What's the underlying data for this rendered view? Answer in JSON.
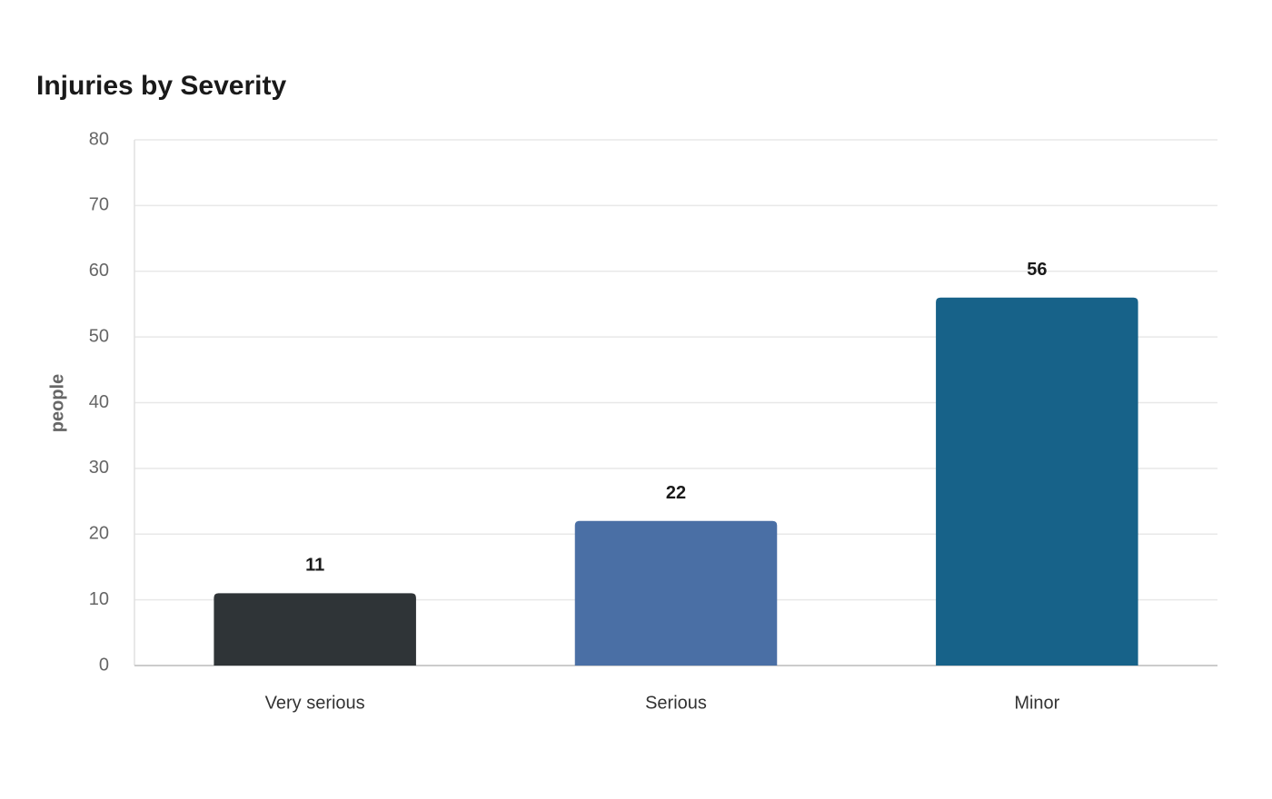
{
  "chart_data": {
    "type": "bar",
    "title": "Injuries by Severity",
    "y_label": "people",
    "categories": [
      "Very serious",
      "Serious",
      "Minor"
    ],
    "values": [
      11,
      22,
      56
    ],
    "colors": [
      "#2f3437",
      "#4a6fa5",
      "#176289"
    ],
    "ylim": [
      0,
      80
    ],
    "yticks": [
      0,
      10,
      20,
      30,
      40,
      50,
      60,
      70,
      80
    ],
    "grid": true
  }
}
